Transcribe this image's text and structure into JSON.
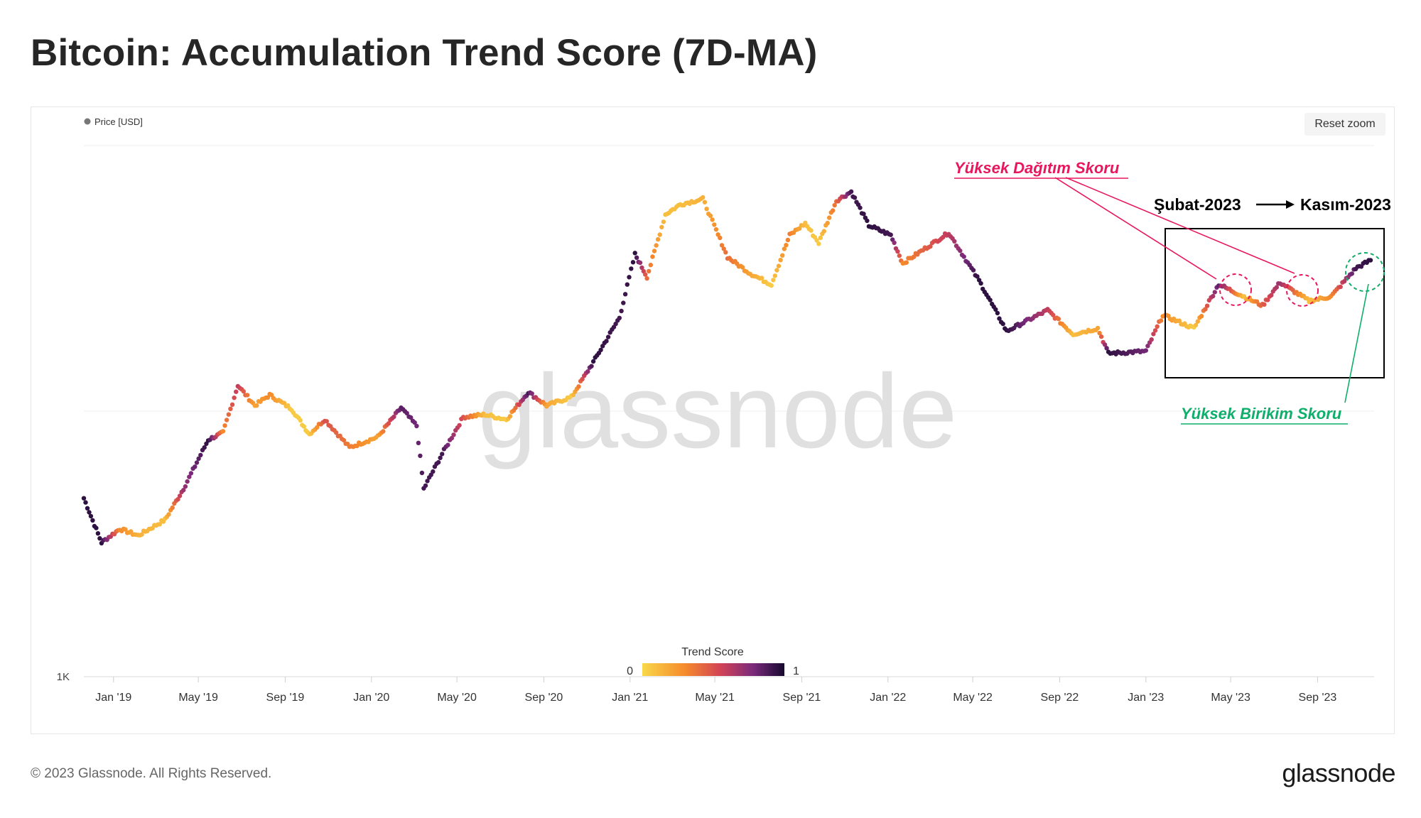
{
  "title": "Bitcoin: Accumulation Trend Score (7D-MA)",
  "reset_zoom_label": "Reset zoom",
  "footer": "© 2023 Glassnode. All Rights Reserved.",
  "logo": "glassnode",
  "watermark": "glassnode",
  "colors": {
    "scale_low": "#f9d84a",
    "scale_mid1": "#f58a2b",
    "scale_mid2": "#d24356",
    "scale_mid3": "#7a2a7b",
    "scale_high": "#16092f",
    "distribution_annotation": "#e8175d",
    "accumulation_annotation": "#0fae6a"
  },
  "annotations": {
    "distribution": "Yüksek Dağıtım Skoru",
    "accumulation": "Yüksek Birikim Skoru",
    "period_start": "Şubat-2023",
    "period_end": "Kasım-2023"
  },
  "chart_data": {
    "type": "scatter",
    "title": "Bitcoin: Accumulation Trend Score (7D-MA)",
    "legend": {
      "series_label": "Price [USD]",
      "placement": "top-left"
    },
    "colorbar": {
      "label": "Trend Score",
      "min_label": "0",
      "max_label": "1",
      "min": 0,
      "max": 1
    },
    "y_scale": "log",
    "ylim": [
      1000,
      100000
    ],
    "y_tick_labels": [
      "1K"
    ],
    "x_tick_labels": [
      "Jan '19",
      "May '19",
      "Sep '19",
      "Jan '20",
      "May '20",
      "Sep '20",
      "Jan '21",
      "May '21",
      "Sep '21",
      "Jan '22",
      "May '22",
      "Sep '22",
      "Jan '23",
      "May '23",
      "Sep '23"
    ],
    "x_ticks": [
      "2019-01-01",
      "2019-05-01",
      "2019-09-01",
      "2020-01-01",
      "2020-05-01",
      "2020-09-01",
      "2021-01-01",
      "2021-05-01",
      "2021-09-01",
      "2022-01-01",
      "2022-05-01",
      "2022-09-01",
      "2023-01-01",
      "2023-05-01",
      "2023-09-01"
    ],
    "xlim": [
      "2018-11-20",
      "2023-11-20"
    ],
    "grid": {
      "horizontal": true,
      "vertical": false
    },
    "series": [
      {
        "name": "Price [USD]",
        "points": [
          [
            "2018-11-20",
            4700,
            0.95
          ],
          [
            "2018-12-15",
            3200,
            0.95
          ],
          [
            "2019-01-10",
            3600,
            0.3
          ],
          [
            "2019-02-05",
            3400,
            0.15
          ],
          [
            "2019-03-15",
            3900,
            0.1
          ],
          [
            "2019-04-10",
            5100,
            0.7
          ],
          [
            "2019-05-15",
            7800,
            0.95
          ],
          [
            "2019-06-05",
            8300,
            0.3
          ],
          [
            "2019-06-26",
            12500,
            0.6
          ],
          [
            "2019-07-20",
            10500,
            0.2
          ],
          [
            "2019-08-10",
            11500,
            0.3
          ],
          [
            "2019-09-10",
            10200,
            0.05
          ],
          [
            "2019-10-05",
            8200,
            0.05
          ],
          [
            "2019-10-27",
            9300,
            0.5
          ],
          [
            "2019-12-01",
            7300,
            0.35
          ],
          [
            "2020-01-10",
            8000,
            0.2
          ],
          [
            "2020-02-12",
            10300,
            0.85
          ],
          [
            "2020-03-05",
            8800,
            0.8
          ],
          [
            "2020-03-15",
            5100,
            0.9
          ],
          [
            "2020-04-10",
            6900,
            0.9
          ],
          [
            "2020-05-10",
            9500,
            0.5
          ],
          [
            "2020-06-10",
            9700,
            0.1
          ],
          [
            "2020-07-10",
            9300,
            0.05
          ],
          [
            "2020-08-10",
            11800,
            0.9
          ],
          [
            "2020-09-05",
            10500,
            0.2
          ],
          [
            "2020-10-10",
            11300,
            0.05
          ],
          [
            "2020-11-10",
            15300,
            0.95
          ],
          [
            "2020-12-17",
            22500,
            0.9
          ],
          [
            "2021-01-08",
            39000,
            0.95
          ],
          [
            "2021-01-25",
            32000,
            0.4
          ],
          [
            "2021-02-20",
            55000,
            0.1
          ],
          [
            "2021-03-13",
            60000,
            0.1
          ],
          [
            "2021-04-14",
            63000,
            0.15
          ],
          [
            "2021-05-19",
            38000,
            0.4
          ],
          [
            "2021-06-20",
            33000,
            0.2
          ],
          [
            "2021-07-20",
            30000,
            0.05
          ],
          [
            "2021-08-15",
            46000,
            0.35
          ],
          [
            "2021-09-06",
            51000,
            0.1
          ],
          [
            "2021-09-25",
            43000,
            0.05
          ],
          [
            "2021-10-20",
            62000,
            0.4
          ],
          [
            "2021-11-10",
            67000,
            0.9
          ],
          [
            "2021-12-05",
            50000,
            0.95
          ],
          [
            "2022-01-05",
            46000,
            0.9
          ],
          [
            "2022-01-22",
            36000,
            0.3
          ],
          [
            "2022-03-28",
            47000,
            0.6
          ],
          [
            "2022-05-10",
            31000,
            0.95
          ],
          [
            "2022-06-18",
            20000,
            0.95
          ],
          [
            "2022-08-15",
            24000,
            0.6
          ],
          [
            "2022-09-20",
            19500,
            0.1
          ],
          [
            "2022-10-25",
            20500,
            0.2
          ],
          [
            "2022-11-09",
            16500,
            0.95
          ],
          [
            "2023-01-01",
            16800,
            0.8
          ],
          [
            "2023-01-25",
            23000,
            0.3
          ],
          [
            "2023-03-10",
            20500,
            0.05
          ],
          [
            "2023-04-14",
            30000,
            0.85
          ],
          [
            "2023-05-20",
            27000,
            0.1
          ],
          [
            "2023-06-15",
            25000,
            0.45
          ],
          [
            "2023-07-10",
            30500,
            0.7
          ],
          [
            "2023-08-20",
            26000,
            0.1
          ],
          [
            "2023-09-20",
            27000,
            0.3
          ],
          [
            "2023-10-25",
            34500,
            0.9
          ],
          [
            "2023-11-15",
            37000,
            0.95
          ]
        ]
      }
    ]
  }
}
